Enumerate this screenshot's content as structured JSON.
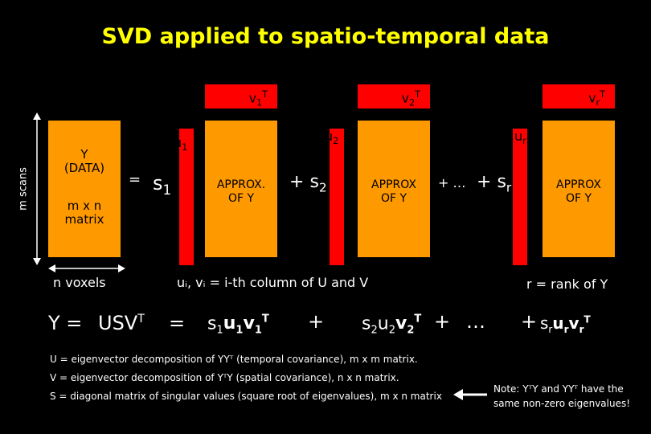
{
  "title": "SVD applied to spatio-temporal data",
  "axis": {
    "rows_label": "m scans",
    "cols_label": "n voxels"
  },
  "data_box": {
    "line1": "Y",
    "line2": "(DATA)",
    "line3": "m x n",
    "line4": "matrix"
  },
  "equals": "=",
  "terms": [
    {
      "s": "s",
      "s_sub": "1",
      "u": "u",
      "u_sub": "1",
      "v": "v",
      "v_sub": "1",
      "v_sup": "T",
      "approx1": "APPROX.",
      "approx2": "OF Y",
      "prefix": ""
    },
    {
      "s": "s",
      "s_sub": "2",
      "u": "u",
      "u_sub": "2",
      "v": "v",
      "v_sub": "2",
      "v_sup": "T",
      "approx1": "APPROX",
      "approx2": "OF Y",
      "prefix": "+"
    },
    {
      "s": "s",
      "s_sub": "r",
      "u": "u",
      "u_sub": "r",
      "v": "v",
      "v_sub": "r",
      "v_sup": "T",
      "approx1": "APPROX",
      "approx2": "OF Y",
      "prefix": "+"
    }
  ],
  "ellipsis_plus": "+ …",
  "notes": {
    "column_note": "uᵢ, vᵢ = i-th column of U and V",
    "rank_note": "r = rank of Y"
  },
  "equation": {
    "lhs": "Y =",
    "usv": "USV",
    "usv_sup": "T",
    "eq": "=",
    "t1_s": "s",
    "t1_sub": "1",
    "t1_u": "u",
    "t1_usub": "1",
    "t1_v": "v",
    "t1_vsub": "1",
    "t1_vsup": "T",
    "plus1": "+",
    "t2_s": "s",
    "t2_sub": "2",
    "t2_u": "u",
    "t2_usub": "2",
    "t2_v": "v",
    "t2_vsub": "2",
    "t2_vsup": "T",
    "plus2": "+",
    "dots": "…",
    "plus3": "+",
    "tr_s": "s",
    "tr_sub": "r",
    "tr_u": "u",
    "tr_usub": "r",
    "tr_v": "v",
    "tr_vsub": "r",
    "tr_vsup": "T"
  },
  "definitions": [
    "U = eigenvector decomposition of YYᵀ (temporal covariance), m x m matrix.",
    "V = eigenvector decomposition of YᵀY (spatial covariance), n x n matrix.",
    "S = diagonal matrix of singular values (square root of eigenvalues), m x n matrix"
  ],
  "side_note": {
    "line1": "Note: YᵀY and YYᵀ have the",
    "line2": "same non-zero eigenvalues!"
  },
  "colors": {
    "title": "#ffff00",
    "orange": "#ff9900",
    "red": "#ff0000",
    "background": "#000000"
  }
}
